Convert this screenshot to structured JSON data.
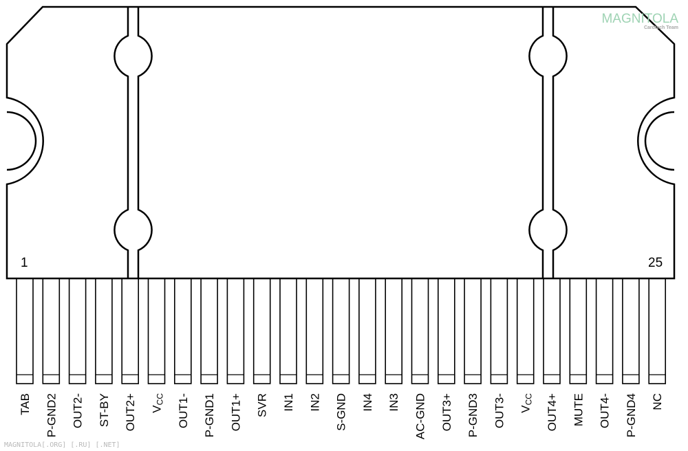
{
  "package": {
    "first_pin_number": "1",
    "last_pin_number": "25"
  },
  "pins": [
    {
      "label": "TAB"
    },
    {
      "label": "P-GND2"
    },
    {
      "label": "OUT2-"
    },
    {
      "label": "ST-BY"
    },
    {
      "label": "OUT2+"
    },
    {
      "label": "V",
      "sub": "CC"
    },
    {
      "label": "OUT1-"
    },
    {
      "label": "P-GND1"
    },
    {
      "label": "OUT1+"
    },
    {
      "label": "SVR"
    },
    {
      "label": "IN1"
    },
    {
      "label": "IN2"
    },
    {
      "label": "S-GND"
    },
    {
      "label": "IN4"
    },
    {
      "label": "IN3"
    },
    {
      "label": "AC-GND"
    },
    {
      "label": "OUT3+"
    },
    {
      "label": "P-GND3"
    },
    {
      "label": "OUT3-"
    },
    {
      "label": "V",
      "sub": "CC"
    },
    {
      "label": "OUT4+"
    },
    {
      "label": "MUTE"
    },
    {
      "label": "OUT4-"
    },
    {
      "label": "P-GND4"
    },
    {
      "label": "NC"
    }
  ],
  "watermark": {
    "logo_text": "MAGNITOLA",
    "logo_subtext": "Cardtech Team",
    "footer_text": "MAGNITOLA[.ORG] [.RU] [.NET]"
  },
  "colors": {
    "stroke": "#000000",
    "logo": "#9fd3b4",
    "watermark": "#b9b9b9"
  }
}
